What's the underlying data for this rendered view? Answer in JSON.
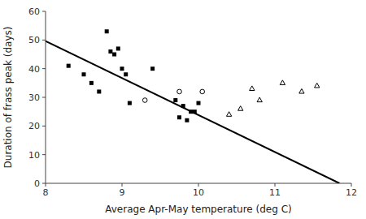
{
  "chart_data": {
    "type": "scatter",
    "xlabel": "Average Apr-May temperature (deg C)",
    "ylabel": "Duration of frass peak (days)",
    "xlim": [
      8,
      12
    ],
    "ylim": [
      0,
      60
    ],
    "xticks": [
      8,
      9,
      10,
      11,
      12
    ],
    "yticks": [
      0,
      10,
      20,
      30,
      40,
      50,
      60
    ],
    "grid": false,
    "series": [
      {
        "color": "#000000",
        "marker": "square",
        "x": [
          8.3,
          8.5,
          8.6,
          8.7,
          8.8,
          8.85,
          8.9,
          8.95,
          9.0,
          9.05,
          9.1,
          9.4,
          9.7,
          9.75,
          9.8,
          9.85,
          9.9,
          9.95,
          10.0
        ],
        "values": [
          41,
          38,
          35,
          32,
          53,
          46,
          45,
          47,
          40,
          38,
          28,
          40,
          29,
          23,
          27,
          22,
          25,
          25,
          28
        ]
      },
      {
        "color": "#000000",
        "marker": "circle-open",
        "x": [
          9.3,
          9.75,
          10.05
        ],
        "values": [
          29,
          32,
          32
        ]
      },
      {
        "color": "#000000",
        "marker": "triangle-open",
        "x": [
          10.4,
          10.55,
          10.7,
          10.8,
          11.1,
          11.35,
          11.55
        ],
        "values": [
          24,
          26,
          33,
          29,
          35,
          32,
          34
        ]
      },
      {
        "type": "line",
        "color": "#000000",
        "x": [
          8.0,
          11.844961240310077
        ],
        "values": [
          49.6,
          0
        ]
      }
    ]
  }
}
